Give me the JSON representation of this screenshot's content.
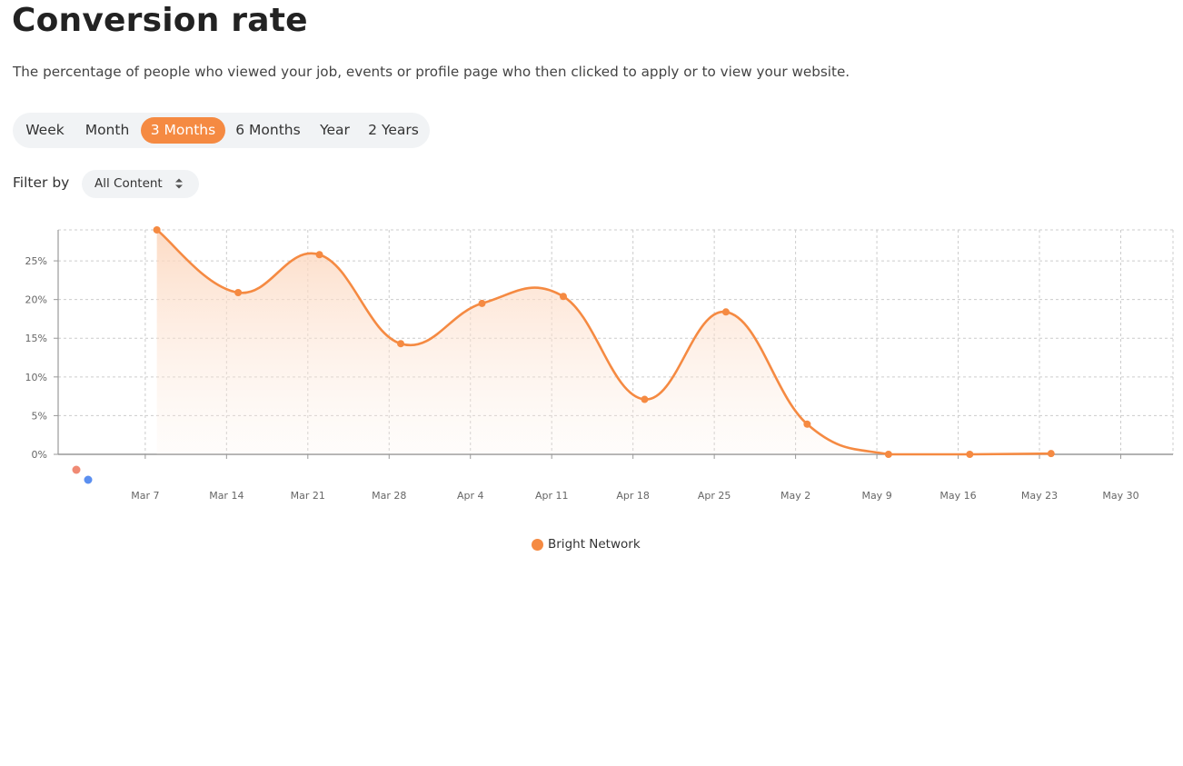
{
  "page": {
    "title": "Conversion rate",
    "subtitle": "The percentage of people who viewed your job, events or profile page who then clicked to apply or to view your website."
  },
  "periods": {
    "items": [
      {
        "label": "Week"
      },
      {
        "label": "Month"
      },
      {
        "label": "3 Months"
      },
      {
        "label": "6 Months"
      },
      {
        "label": "Year"
      },
      {
        "label": "2 Years"
      }
    ],
    "selected": "3 Months"
  },
  "filter": {
    "label": "Filter by",
    "value": "All Content"
  },
  "colors": {
    "accent": "#f58a42",
    "accent_fill": "#fde3d2",
    "grid": "#cccccc",
    "axis": "#999999",
    "stray_dot_salmon": "#f08a74",
    "stray_dot_blue": "#5b8ff0"
  },
  "chart_data": {
    "type": "area",
    "x_tick_labels": [
      "Mar 7",
      "Mar 14",
      "Mar 21",
      "Mar 28",
      "Apr 4",
      "Apr 11",
      "Apr 18",
      "Apr 25",
      "May 2",
      "May 9",
      "May 16",
      "May 23",
      "May 30"
    ],
    "x_tick_days": [
      0,
      7,
      14,
      21,
      28,
      35,
      42,
      49,
      56,
      63,
      70,
      77,
      84
    ],
    "y_ticks": [
      0,
      5,
      10,
      15,
      20,
      25
    ],
    "y_tick_labels": [
      "0%",
      "5%",
      "10%",
      "15%",
      "20%",
      "25%"
    ],
    "ylim": [
      0,
      29
    ],
    "xlim": [
      -7.5,
      88.5
    ],
    "grid": true,
    "legend_position": "bottom-center",
    "series": [
      {
        "name": "Bright Network",
        "color": "#f58a42",
        "points": [
          {
            "x": 1,
            "y": 29.0
          },
          {
            "x": 8,
            "y": 20.9
          },
          {
            "x": 15,
            "y": 25.8
          },
          {
            "x": 22,
            "y": 14.3
          },
          {
            "x": 29,
            "y": 19.5
          },
          {
            "x": 36,
            "y": 20.4
          },
          {
            "x": 43,
            "y": 7.1
          },
          {
            "x": 50,
            "y": 18.4
          },
          {
            "x": 57,
            "y": 3.9
          },
          {
            "x": 64,
            "y": 0.0
          },
          {
            "x": 71,
            "y": 0.0
          },
          {
            "x": 78,
            "y": 0.1
          }
        ]
      }
    ]
  }
}
